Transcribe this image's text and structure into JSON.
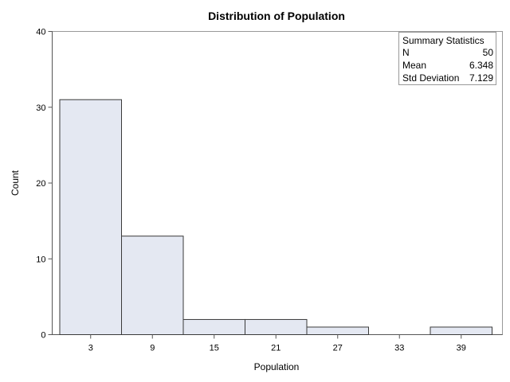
{
  "chart_data": {
    "type": "bar",
    "title": "Distribution of Population",
    "xlabel": "Population",
    "ylabel": "Count",
    "categories": [
      "3",
      "9",
      "15",
      "21",
      "27",
      "33",
      "39"
    ],
    "values": [
      31,
      13,
      2,
      2,
      1,
      0,
      1
    ],
    "ylim": [
      0,
      40
    ],
    "yticks": [
      0,
      10,
      20,
      30,
      40
    ],
    "grid": false,
    "colors": {
      "bar_fill": "#e4e8f2",
      "bar_stroke": "#3a3a3a",
      "axis": "#555555",
      "frame": "#999999"
    },
    "summary_statistics": {
      "title": "Summary Statistics",
      "rows": [
        {
          "label": "N",
          "value": "50"
        },
        {
          "label": "Mean",
          "value": "6.348"
        },
        {
          "label": "Std Deviation",
          "value": "7.129"
        }
      ],
      "placement": "top-right"
    }
  }
}
